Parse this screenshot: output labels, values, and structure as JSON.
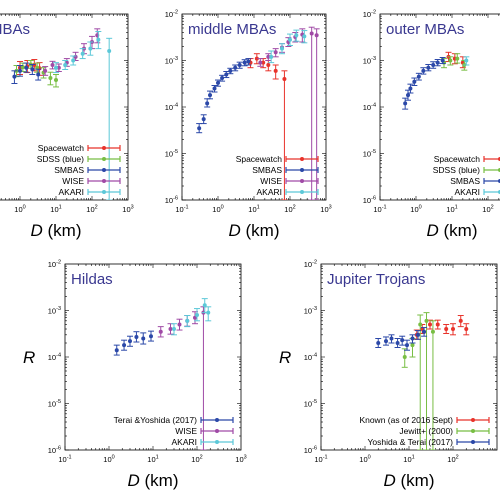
{
  "chart_data": [
    {
      "type": "scatter",
      "title": "MBAs",
      "xlabel": "D (km)",
      "ylabel": "",
      "xlog": true,
      "ylog": true,
      "xlim": [
        0.1,
        1000
      ],
      "ylim": [
        1e-06,
        0.01
      ],
      "xticks": [
        "10^0",
        "10^1",
        "10^2",
        "10^3"
      ],
      "yticks": [],
      "legend_position": "bottom-right",
      "series": [
        {
          "name": "Spacewatch",
          "color": "#e8332b",
          "x": [
            1.0,
            1.6,
            2.5,
            3.5
          ],
          "y": [
            0.0007,
            0.00075,
            0.0008,
            0.00068
          ],
          "ylo": [
            0.0005,
            0.00055,
            0.0006,
            0.00048
          ],
          "yhi": [
            0.00095,
            0.001,
            0.00105,
            0.0009
          ]
        },
        {
          "name": "SDSS (blue)",
          "color": "#78be43",
          "x": [
            0.8,
            1.2,
            2.0,
            3.0,
            4.5,
            7.0,
            10.0
          ],
          "y": [
            0.0006,
            0.00072,
            0.00082,
            0.0007,
            0.00055,
            0.00042,
            0.00038
          ],
          "ylo": [
            0.00045,
            0.00058,
            0.00068,
            0.00056,
            0.00042,
            0.0003,
            0.00027
          ],
          "yhi": [
            0.00078,
            0.00088,
            0.001,
            0.00088,
            0.0007,
            0.00056,
            0.0005
          ]
        },
        {
          "name": "SMBAS",
          "color": "#2b48a8",
          "x": [
            0.7,
            1.0,
            1.5,
            2.2,
            3.2
          ],
          "y": [
            0.00045,
            0.0006,
            0.0007,
            0.00065,
            0.0005
          ],
          "ylo": [
            0.00032,
            0.00046,
            0.00056,
            0.0005,
            0.00038
          ],
          "yhi": [
            0.0006,
            0.00078,
            0.00088,
            0.00082,
            0.00065
          ]
        },
        {
          "name": "WISE",
          "color": "#a04aa6",
          "x": [
            5,
            8,
            12,
            20,
            35,
            60,
            100,
            140
          ],
          "y": [
            0.0006,
            0.0008,
            0.0007,
            0.0009,
            0.0012,
            0.0018,
            0.0025,
            0.0035
          ],
          "ylo": [
            0.00048,
            0.00066,
            0.00058,
            0.00075,
            0.001,
            0.0014,
            0.0018,
            0.0024
          ],
          "yhi": [
            0.00074,
            0.00096,
            0.00084,
            0.0011,
            0.0015,
            0.0023,
            0.0033,
            0.0048
          ]
        },
        {
          "name": "AKARI",
          "color": "#5cc8d8",
          "x": [
            10,
            18,
            30,
            55,
            90,
            150,
            300
          ],
          "y": [
            0.0007,
            0.0008,
            0.001,
            0.0014,
            0.0018,
            0.0028,
            0.0016
          ],
          "ylo": [
            0.00055,
            0.00064,
            0.0008,
            0.0011,
            0.0013,
            0.0018,
            1e-06
          ],
          "yhi": [
            0.0009,
            0.001,
            0.00125,
            0.0018,
            0.0025,
            0.0042,
            0.003
          ]
        }
      ]
    },
    {
      "type": "scatter",
      "title": "middle MBAs",
      "xlabel": "D (km)",
      "ylabel": "",
      "xlog": true,
      "ylog": true,
      "xlim": [
        0.1,
        1000
      ],
      "ylim": [
        1e-06,
        0.01
      ],
      "xticks": [
        "10^-1",
        "10^0",
        "10^1",
        "10^2",
        "10^3"
      ],
      "yticks": [
        "10^-6",
        "10^-5",
        "10^-4",
        "10^-3",
        "10^-2"
      ],
      "legend_position": "bottom-right",
      "series": [
        {
          "name": "Spacewatch",
          "color": "#e8332b",
          "x": [
            8,
            12,
            18,
            25,
            40,
            70
          ],
          "y": [
            0.0009,
            0.0011,
            0.0009,
            0.0008,
            0.0006,
            0.0004
          ],
          "ylo": [
            0.0007,
            0.00085,
            0.0007,
            0.0006,
            0.0004,
            1e-06
          ],
          "yhi": [
            0.0011,
            0.0014,
            0.0011,
            0.001,
            0.0008,
            0.0006
          ]
        },
        {
          "name": "SMBAS",
          "color": "#2b48a8",
          "x": [
            0.3,
            0.4,
            0.5,
            0.6,
            0.8,
            1.0,
            1.3,
            1.7,
            2.2,
            3.0,
            4.0,
            5.5,
            7.0
          ],
          "y": [
            3.5e-05,
            5.5e-05,
            0.00012,
            0.00018,
            0.00025,
            0.00033,
            0.00042,
            0.0005,
            0.0006,
            0.0007,
            0.0008,
            0.0009,
            0.00095
          ],
          "ylo": [
            2.8e-05,
            4.4e-05,
            0.0001,
            0.00015,
            0.00021,
            0.00028,
            0.00036,
            0.00043,
            0.00052,
            0.0006,
            0.00068,
            0.00077,
            0.0008
          ],
          "yhi": [
            4.4e-05,
            6.8e-05,
            0.00015,
            0.00022,
            0.00029,
            0.00038,
            0.00048,
            0.00058,
            0.00068,
            0.0008,
            0.00092,
            0.00104,
            0.0011
          ]
        },
        {
          "name": "WISE",
          "color": "#a04aa6",
          "x": [
            15,
            25,
            40,
            60,
            90,
            140,
            220,
            400,
            550
          ],
          "y": [
            0.0009,
            0.0012,
            0.0015,
            0.0019,
            0.0025,
            0.0032,
            0.0036,
            0.0038,
            0.0035
          ],
          "ylo": [
            0.00075,
            0.001,
            0.0012,
            0.0015,
            0.002,
            0.0025,
            0.0025,
            1e-06,
            1e-06
          ],
          "yhi": [
            0.0011,
            0.0014,
            0.0018,
            0.0023,
            0.0031,
            0.004,
            0.0048,
            0.0052,
            0.0048
          ]
        },
        {
          "name": "AKARI",
          "color": "#5cc8d8",
          "x": [
            30,
            60,
            100,
            150,
            250
          ],
          "y": [
            0.0012,
            0.0018,
            0.0028,
            0.0035,
            0.0033
          ],
          "ylo": [
            0.0009,
            0.0014,
            0.0021,
            0.0026,
            0.0024
          ],
          "yhi": [
            0.0016,
            0.0023,
            0.0037,
            0.0045,
            0.0044
          ]
        }
      ]
    },
    {
      "type": "scatter",
      "title": "outer MBAs",
      "xlabel": "D (km)",
      "ylabel": "",
      "xlog": true,
      "ylog": true,
      "xlim": [
        0.1,
        1000
      ],
      "ylim": [
        1e-06,
        0.01
      ],
      "xticks": [
        "10^-1",
        "10^0",
        "10^1",
        "10^2"
      ],
      "yticks": [
        "10^-6",
        "10^-5",
        "10^-4",
        "10^-3",
        "10^-2"
      ],
      "legend_position": "bottom-right",
      "series": [
        {
          "name": "Spacewatch",
          "color": "#e8332b",
          "x": [
            8,
            12,
            20
          ],
          "y": [
            0.0012,
            0.0011,
            0.0009
          ],
          "ylo": [
            0.00095,
            0.00085,
            0.0007
          ],
          "yhi": [
            0.0015,
            0.0014,
            0.0012
          ]
        },
        {
          "name": "SDSS (blue)",
          "color": "#78be43",
          "x": [
            6,
            9,
            14,
            22
          ],
          "y": [
            0.0009,
            0.001,
            0.0011,
            0.0008
          ],
          "ylo": [
            0.0007,
            0.0008,
            0.00088,
            0.00062
          ],
          "yhi": [
            0.0011,
            0.0012,
            0.0014,
            0.001
          ]
        },
        {
          "name": "SMBAS",
          "color": "#2b48a8",
          "x": [
            0.5,
            0.6,
            0.7,
            0.9,
            1.2,
            1.6,
            2.2,
            3.0,
            4.0,
            5.5
          ],
          "y": [
            0.00012,
            0.00018,
            0.00025,
            0.00035,
            0.00045,
            0.0006,
            0.0007,
            0.0008,
            0.0009,
            0.001
          ],
          "ylo": [
            9e-05,
            0.00014,
            0.0002,
            0.00029,
            0.00038,
            0.00051,
            0.0006,
            0.00068,
            0.00077,
            0.00086
          ],
          "yhi": [
            0.000155,
            0.00023,
            0.00031,
            0.00042,
            0.00053,
            0.0007,
            0.00082,
            0.00094,
            0.00105,
            0.00116
          ]
        },
        {
          "name": "AKARI",
          "color": "#5cc8d8",
          "x": [
            25
          ],
          "y": [
            0.001
          ],
          "ylo": [
            0.0008
          ],
          "yhi": [
            0.0012
          ]
        }
      ]
    },
    {
      "type": "scatter",
      "title": "Hildas",
      "xlabel": "D (km)",
      "ylabel": "R",
      "xlog": true,
      "ylog": true,
      "xlim": [
        0.1,
        1000
      ],
      "ylim": [
        1e-06,
        0.01
      ],
      "xticks": [
        "10^-1",
        "10^0",
        "10^1",
        "10^2",
        "10^3"
      ],
      "yticks": [
        "10^-6",
        "10^-5",
        "10^-4",
        "10^-3",
        "10^-2"
      ],
      "legend_position": "bottom-right",
      "series": [
        {
          "name": "Terai &Yoshida (2017)",
          "color": "#2b48a8",
          "x": [
            1.5,
            2.2,
            3.0,
            4.2,
            6.0,
            9.0
          ],
          "y": [
            0.00014,
            0.00018,
            0.00022,
            0.00027,
            0.00025,
            0.00028
          ],
          "ylo": [
            0.00011,
            0.00014,
            0.00017,
            0.00021,
            0.00019,
            0.00022
          ],
          "yhi": [
            0.00018,
            0.00023,
            0.00028,
            0.00035,
            0.00033,
            0.00036
          ]
        },
        {
          "name": "WISE",
          "color": "#a04aa6",
          "x": [
            15,
            25,
            40,
            60,
            90,
            140
          ],
          "y": [
            0.00035,
            0.0004,
            0.0005,
            0.0006,
            0.0007,
            0.0009
          ],
          "ylo": [
            0.00027,
            0.00031,
            0.00038,
            0.00046,
            0.00052,
            1e-06
          ],
          "yhi": [
            0.00045,
            0.00052,
            0.00065,
            0.00078,
            0.00094,
            0.0012
          ]
        },
        {
          "name": "AKARI",
          "color": "#5cc8d8",
          "x": [
            30,
            60,
            100,
            150,
            180
          ],
          "y": [
            0.0004,
            0.0006,
            0.0008,
            0.0013,
            0.0009
          ],
          "ylo": [
            0.0003,
            0.00045,
            0.0006,
            0.0009,
            0.0006
          ],
          "yhi": [
            0.00052,
            0.00078,
            0.0011,
            0.0018,
            0.0012
          ]
        }
      ]
    },
    {
      "type": "scatter",
      "title": "Jupiter Trojans",
      "xlabel": "D (km)",
      "ylabel": "R",
      "xlog": true,
      "ylog": true,
      "xlim": [
        0.1,
        1000
      ],
      "ylim": [
        1e-06,
        0.01
      ],
      "xticks": [
        "10^-1",
        "10^0",
        "10^1",
        "10^2"
      ],
      "yticks": [
        "10^-6",
        "10^-5",
        "10^-4",
        "10^-3",
        "10^-2"
      ],
      "legend_position": "bottom-right",
      "series": [
        {
          "name": "Known (as of 2016 Sept)",
          "color": "#e8332b",
          "x": [
            15,
            20,
            30,
            45,
            70,
            100,
            150,
            200
          ],
          "y": [
            0.0003,
            0.0004,
            0.0005,
            0.0005,
            0.0004,
            0.0004,
            0.0006,
            0.0004
          ],
          "ylo": [
            0.00024,
            0.00032,
            0.0004,
            0.0004,
            0.00032,
            0.0003,
            0.00045,
            0.0003
          ],
          "yhi": [
            0.00038,
            0.0005,
            0.00062,
            0.00062,
            0.0005,
            0.00052,
            0.00078,
            0.00052
          ]
        },
        {
          "name": "Jewitt+ (2000)",
          "color": "#78be43",
          "x": [
            8,
            12,
            18,
            25,
            35
          ],
          "y": [
            0.0001,
            0.00018,
            0.0005,
            0.0006,
            0.00035
          ],
          "ylo": [
            6e-05,
            0.0001,
            1e-06,
            1e-06,
            1e-06
          ],
          "yhi": [
            0.00015,
            0.00025,
            0.0008,
            0.0009,
            0.0006
          ]
        },
        {
          "name": "Yoshida & Terai (2017)",
          "color": "#2b48a8",
          "x": [
            2,
            3,
            4,
            5.5,
            7,
            9,
            12,
            16,
            22
          ],
          "y": [
            0.0002,
            0.00022,
            0.00025,
            0.0002,
            0.00023,
            0.00018,
            0.00025,
            0.0003,
            0.00035
          ],
          "ylo": [
            0.00016,
            0.00018,
            0.0002,
            0.00016,
            0.00018,
            0.00014,
            0.0002,
            0.00024,
            0.00028
          ],
          "yhi": [
            0.00025,
            0.00027,
            0.0003,
            0.00025,
            0.00028,
            0.00023,
            0.0003,
            0.00037,
            0.00043
          ]
        }
      ]
    }
  ]
}
